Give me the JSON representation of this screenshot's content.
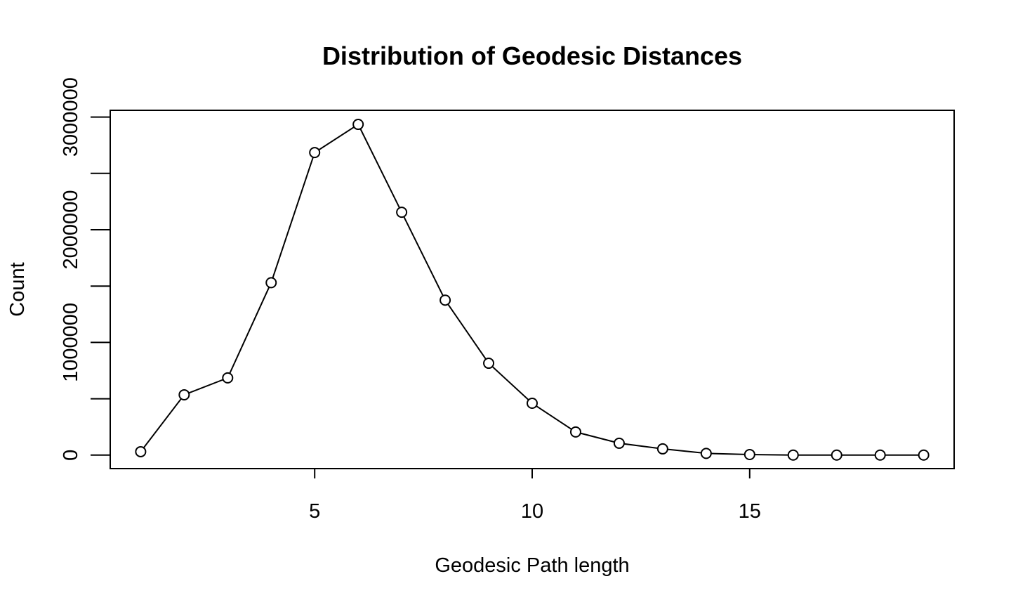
{
  "chart_data": {
    "type": "line",
    "title": "Distribution of Geodesic Distances",
    "xlabel": "Geodesic Path length",
    "ylabel": "Count",
    "markers": "open-circle",
    "grid": false,
    "x": [
      1,
      2,
      3,
      4,
      5,
      6,
      7,
      8,
      9,
      10,
      11,
      12,
      13,
      14,
      15,
      16,
      17,
      18,
      19
    ],
    "series": [
      {
        "values": [
          30000,
          535000,
          685000,
          1530000,
          2685000,
          2935000,
          2155000,
          1375000,
          815000,
          460000,
          205000,
          105000,
          55000,
          15000,
          5000,
          0,
          0,
          0,
          0
        ]
      }
    ],
    "xlim": [
      0.3,
      19.7
    ],
    "ylim": [
      -120000,
      3060000
    ],
    "xticks": [
      5,
      10,
      15
    ],
    "xtick_labels": [
      "5",
      "10",
      "15"
    ],
    "yticks": [
      0,
      500000,
      1000000,
      1500000,
      2000000,
      2500000,
      3000000
    ],
    "ytick_labels": [
      "0",
      "",
      "1000000",
      "",
      "2000000",
      "",
      "3000000"
    ],
    "colors": {
      "line": "#000000",
      "background": "#ffffff"
    }
  }
}
